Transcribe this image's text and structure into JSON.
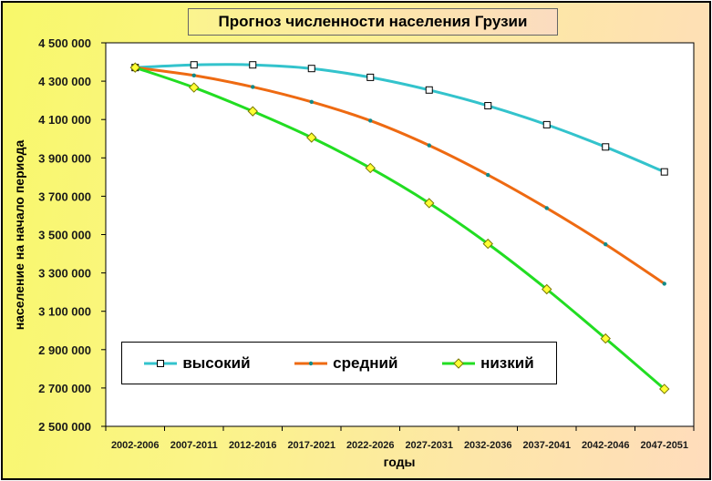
{
  "chart_data": {
    "type": "line",
    "title": "Прогноз численности населения Грузии",
    "xlabel": "годы",
    "ylabel": "население на начало периода",
    "categories": [
      "2002-2006",
      "2007-2011",
      "2012-2016",
      "2017-2021",
      "2022-2026",
      "2027-2031",
      "2032-2036",
      "2037-2041",
      "2042-2046",
      "2047-2051"
    ],
    "ylim": [
      2500000,
      4500000
    ],
    "yticks": [
      2500000,
      2700000,
      2900000,
      3100000,
      3300000,
      3500000,
      3700000,
      3900000,
      4100000,
      4300000,
      4500000
    ],
    "ytick_labels": [
      "2 500 000",
      "2 700 000",
      "2 900 000",
      "3 100 000",
      "3 300 000",
      "3 500 000",
      "3 700 000",
      "3 900 000",
      "4 100 000",
      "4 300 000",
      "4 500 000"
    ],
    "grid": false,
    "legend_position": "bottom-left",
    "series": [
      {
        "name": "высокий",
        "color": "#33c3cc",
        "marker": "square",
        "values": [
          4371000,
          4385000,
          4385000,
          4366000,
          4320000,
          4254000,
          4172000,
          4073000,
          3957000,
          3827000
        ]
      },
      {
        "name": "средний",
        "color": "#ee6a12",
        "marker": "dot",
        "values": [
          4371000,
          4330000,
          4270000,
          4192000,
          4094000,
          3965000,
          3811000,
          3638000,
          3449000,
          3244000
        ]
      },
      {
        "name": "низкий",
        "color": "#22dd22",
        "marker": "diamond",
        "values": [
          4371000,
          4267000,
          4143000,
          4006000,
          3847000,
          3664000,
          3452000,
          3215000,
          2958000,
          2695000
        ]
      }
    ]
  }
}
